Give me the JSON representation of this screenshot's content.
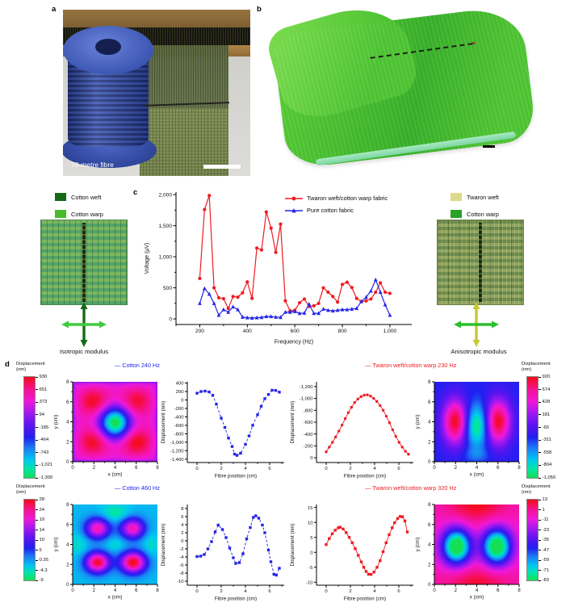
{
  "figure": {
    "panel_labels": {
      "a": "a",
      "b": "b",
      "c": "c",
      "d": "d"
    },
    "panel_a": {
      "overlay_text": "70-metre fibre"
    },
    "left_block": {
      "legend": [
        {
          "label": "Cotton weft",
          "color": "#166b16"
        },
        {
          "label": "Cotton warp",
          "color": "#46bc2d"
        }
      ],
      "arrows": {
        "vertical": "#166b16",
        "horizontal": "#3ecb3e"
      },
      "caption": "Isotropic modulus"
    },
    "right_block": {
      "legend": [
        {
          "label": "Twaron weft",
          "color": "#dcd98a"
        },
        {
          "label": "Cotton warp",
          "color": "#2ba02b"
        }
      ],
      "arrows": {
        "vertical": "#c8c832",
        "horizontal": "#2bbf2b"
      },
      "caption": "Anisotropic modulus"
    }
  },
  "colors": {
    "red_series": "#ee1c23",
    "blue_series": "#2525e8"
  },
  "colormap": [
    [
      0.0,
      "#15df55"
    ],
    [
      0.09,
      "#00e6a8"
    ],
    [
      0.18,
      "#00c8f0"
    ],
    [
      0.3,
      "#1e78f5"
    ],
    [
      0.4,
      "#2020f0"
    ],
    [
      0.52,
      "#5c14f0"
    ],
    [
      0.64,
      "#a018f0"
    ],
    [
      0.76,
      "#f018d8"
    ],
    [
      0.88,
      "#f51290"
    ],
    [
      1.0,
      "#f50a14"
    ]
  ],
  "chart_data": [
    {
      "id": "voltage-spectrum",
      "type": "line",
      "title": "",
      "xlabel": "Frequency (Hz)",
      "ylabel": "Voltage (µV)",
      "xlim": [
        100,
        1092
      ],
      "ylim": [
        -90,
        2040
      ],
      "xticks": {
        "values": [
          200,
          400,
          600,
          800,
          1000
        ],
        "labels": [
          "200",
          "400",
          "600",
          "800",
          "1,000"
        ],
        "minor": 100
      },
      "yticks": {
        "values": [
          0,
          500,
          1000,
          1500,
          2000
        ],
        "labels": [
          "0",
          "500",
          "1,000",
          "1,500",
          "2,000"
        ],
        "minor": 250
      },
      "legend_position": "top-right",
      "x": [
        200,
        220,
        240,
        260,
        280,
        300,
        320,
        340,
        360,
        380,
        400,
        420,
        440,
        460,
        480,
        500,
        520,
        540,
        560,
        580,
        600,
        620,
        640,
        660,
        680,
        700,
        720,
        740,
        760,
        780,
        800,
        820,
        840,
        860,
        880,
        900,
        920,
        940,
        960,
        980,
        1000
      ],
      "series": [
        {
          "name": "Twaron weft/cotton warp fabric",
          "color": "#ee1c23",
          "marker": "circle",
          "values": [
            650,
            1760,
            1985,
            500,
            340,
            325,
            170,
            360,
            350,
            420,
            595,
            330,
            1140,
            1110,
            1720,
            1460,
            1070,
            1525,
            290,
            130,
            140,
            260,
            320,
            200,
            210,
            250,
            500,
            430,
            360,
            270,
            555,
            590,
            505,
            330,
            280,
            290,
            320,
            430,
            580,
            430,
            410
          ]
        },
        {
          "name": "Pure cotton fabric",
          "color": "#2525e8",
          "marker": "triangle",
          "values": [
            250,
            490,
            400,
            250,
            60,
            150,
            110,
            195,
            150,
            30,
            20,
            15,
            20,
            25,
            40,
            40,
            30,
            25,
            110,
            110,
            120,
            90,
            95,
            240,
            90,
            90,
            160,
            140,
            130,
            140,
            150,
            150,
            160,
            170,
            280,
            350,
            450,
            630,
            430,
            230,
            60
          ]
        }
      ]
    },
    {
      "id": "map-cotton-240",
      "type": "heatmap",
      "xlabel": "x (cm)",
      "ylabel": "y (cm)",
      "xlim": [
        0,
        8
      ],
      "ylim": [
        0,
        8
      ],
      "xticks": {
        "values": [
          0,
          2,
          4,
          6,
          8
        ],
        "labels": [
          "0",
          "2",
          "4",
          "6",
          "8"
        ],
        "minor": 1
      },
      "yticks": {
        "values": [
          0,
          2,
          4,
          6,
          8
        ],
        "labels": [
          "0",
          "2",
          "4",
          "6",
          "8"
        ],
        "minor": 1
      },
      "range": [
        -1300,
        930
      ],
      "base": 420,
      "edge": {
        "amount": -400,
        "width": 0.32
      },
      "blobs": [
        {
          "x": 2,
          "y": 6,
          "sx": 1.05,
          "sy": 1.0,
          "a": 500
        },
        {
          "x": 6,
          "y": 6,
          "sx": 1.05,
          "sy": 1.0,
          "a": 470
        },
        {
          "x": 2,
          "y": 2,
          "sx": 1.05,
          "sy": 1.0,
          "a": 500
        },
        {
          "x": 6,
          "y": 2,
          "sx": 1.05,
          "sy": 1.0,
          "a": 540
        },
        {
          "x": 4,
          "y": 3.9,
          "sx": 1.0,
          "sy": 1.1,
          "a": -1800
        }
      ],
      "colorbar": {
        "title_lines": [
          "Displacement",
          "(nm)"
        ],
        "ticks": [
          "930",
          "651",
          "373",
          "94",
          "-185",
          "-464",
          "-743",
          "-1,021",
          "-1,300"
        ]
      }
    },
    {
      "id": "line-cotton-240",
      "type": "mini_line",
      "title": "— Cotton 240 Hz",
      "color": "#2525e8",
      "marker": "square",
      "dash": true,
      "xlabel": "Fibre position (cm)",
      "ylabel": "Displacement (nm)",
      "xlim": [
        -0.8,
        7.2
      ],
      "ylim": [
        -1480,
        430
      ],
      "xticks": {
        "values": [
          0,
          2,
          4,
          6
        ],
        "labels": [
          "0",
          "2",
          "4",
          "6"
        ],
        "minor": 1
      },
      "yticks": {
        "values": [
          400,
          200,
          0,
          -200,
          -400,
          -600,
          -800,
          -1000,
          -1200,
          -1400
        ],
        "labels": [
          "400",
          "200",
          "0",
          "-200",
          "-400",
          "-600",
          "-800",
          "-1,000",
          "-1,200",
          "-1,400"
        ]
      },
      "x": [
        0,
        0.33,
        0.66,
        1.0,
        1.3,
        1.6,
        2.0,
        2.3,
        2.6,
        2.9,
        3.1,
        3.3,
        3.6,
        4.0,
        4.3,
        4.6,
        5.0,
        5.3,
        5.6,
        5.9,
        6.2,
        6.5,
        6.8
      ],
      "values": [
        160,
        200,
        210,
        190,
        110,
        -100,
        -430,
        -650,
        -900,
        -1100,
        -1280,
        -1310,
        -1260,
        -1050,
        -850,
        -600,
        -350,
        -150,
        30,
        130,
        230,
        225,
        185
      ]
    },
    {
      "id": "line-twaron-230",
      "type": "mini_line",
      "title": "— Twaron weft/cotton warp 230 Hz",
      "color": "#ee1c23",
      "marker": "circle",
      "dash": false,
      "xlabel": "Fibre position (cm)",
      "ylabel": "Displacement (nm)",
      "xlim": [
        -0.8,
        7.2
      ],
      "ylim": [
        80,
        -1280
      ],
      "xticks": {
        "values": [
          0,
          2,
          4,
          6
        ],
        "labels": [
          "0",
          "2",
          "4",
          "6"
        ],
        "minor": 1
      },
      "yticks": {
        "values": [
          0,
          -200,
          -400,
          -600,
          -800,
          -1000,
          -1200
        ],
        "labels": [
          "0",
          "-200",
          "-400",
          "-600",
          "-800",
          "-1,000",
          "-1,200"
        ]
      },
      "x": [
        0,
        0.26,
        0.52,
        0.78,
        1.05,
        1.31,
        1.57,
        1.83,
        2.09,
        2.35,
        2.62,
        2.88,
        3.14,
        3.4,
        3.66,
        3.92,
        4.18,
        4.45,
        4.71,
        4.97,
        5.23,
        5.49,
        5.75,
        6.02,
        6.28,
        6.54,
        6.8
      ],
      "values": [
        -100,
        -180,
        -260,
        -350,
        -450,
        -550,
        -660,
        -760,
        -850,
        -930,
        -990,
        -1030,
        -1055,
        -1060,
        -1040,
        -1000,
        -950,
        -880,
        -800,
        -700,
        -590,
        -470,
        -360,
        -260,
        -180,
        -110,
        -60
      ]
    },
    {
      "id": "map-twaron-230",
      "type": "heatmap",
      "xlabel": "x (cm)",
      "ylabel": "y (cm)",
      "xlim": [
        0,
        8
      ],
      "ylim": [
        0,
        8
      ],
      "xticks": {
        "values": [
          0,
          2,
          4,
          6,
          8
        ],
        "labels": [
          "0",
          "2",
          "4",
          "6",
          "8"
        ],
        "minor": 1
      },
      "yticks": {
        "values": [
          0,
          2,
          4,
          6,
          8
        ],
        "labels": [
          "0",
          "2",
          "4",
          "6",
          "8"
        ],
        "minor": 1
      },
      "range": [
        -1050,
        920
      ],
      "base": -240,
      "blobs": [
        {
          "x": 2,
          "y": 4,
          "sx": 0.85,
          "sy": 1.6,
          "a": 1160
        },
        {
          "x": 6,
          "y": 4,
          "sx": 0.85,
          "sy": 1.6,
          "a": 1160
        },
        {
          "x": 4,
          "y": 3.6,
          "sx": 0.8,
          "sy": 1.5,
          "a": -820
        },
        {
          "x": 4,
          "y": 0.7,
          "sx": 0.9,
          "sy": 0.5,
          "a": -180
        }
      ],
      "colorbar": {
        "title_lines": [
          "Displacement",
          "(nm)"
        ],
        "ticks": [
          "920",
          "674",
          "428",
          "181",
          "-65",
          "-311",
          "-558",
          "-804",
          "-1,050"
        ]
      }
    },
    {
      "id": "map-cotton-460",
      "type": "heatmap",
      "xlabel": "x (cm)",
      "ylabel": "y (cm)",
      "xlim": [
        0,
        8
      ],
      "ylim": [
        0,
        8
      ],
      "xticks": {
        "values": [
          0,
          2,
          4,
          6,
          8
        ],
        "labels": [
          "0",
          "2",
          "4",
          "6",
          "8"
        ],
        "minor": 1
      },
      "yticks": {
        "values": [
          0,
          2,
          4,
          6,
          8
        ],
        "labels": [
          "0",
          "2",
          "4",
          "6",
          "8"
        ],
        "minor": 1
      },
      "range": [
        -9,
        28
      ],
      "base": -1.5,
      "blobs": [
        {
          "x": 2.35,
          "y": 5.6,
          "sx": 0.8,
          "sy": 0.72,
          "a": 23
        },
        {
          "x": 5.65,
          "y": 5.6,
          "sx": 0.8,
          "sy": 0.72,
          "a": 23
        },
        {
          "x": 2.35,
          "y": 2.2,
          "sx": 0.8,
          "sy": 0.72,
          "a": 29
        },
        {
          "x": 5.7,
          "y": 2.2,
          "sx": 0.85,
          "sy": 0.75,
          "a": 30
        },
        {
          "x": 4,
          "y": 7.1,
          "sx": 0.9,
          "sy": 0.6,
          "a": -5
        },
        {
          "x": 4,
          "y": 4,
          "sx": 0.7,
          "sy": 0.5,
          "a": -3
        },
        {
          "x": 0.6,
          "y": 4,
          "sx": 0.6,
          "sy": 0.8,
          "a": -3
        },
        {
          "x": 7.4,
          "y": 4,
          "sx": 0.6,
          "sy": 0.8,
          "a": -3
        }
      ],
      "colorbar": {
        "title_lines": [
          "Displacement",
          "(nm)"
        ],
        "ticks": [
          "28",
          "24",
          "19",
          "14",
          "10",
          "5",
          "0.35",
          "-4.3",
          "-9"
        ]
      }
    },
    {
      "id": "line-cotton-460",
      "type": "mini_line",
      "title": "— Cotton 460 Hz",
      "color": "#2525e8",
      "marker": "square",
      "dash": true,
      "xlabel": "Fibre position (cm)",
      "ylabel": "Displacement (nm)",
      "xlim": [
        -0.8,
        7.2
      ],
      "ylim": [
        -11,
        9
      ],
      "xticks": {
        "values": [
          0,
          2,
          4,
          6
        ],
        "labels": [
          "0",
          "2",
          "4",
          "6"
        ],
        "minor": 1
      },
      "yticks": {
        "values": [
          8,
          6,
          4,
          2,
          0,
          -2,
          -4,
          -6,
          -8,
          -10
        ],
        "labels": [
          "8",
          "6",
          "4",
          "2",
          "0",
          "-2",
          "-4",
          "-6",
          "-8",
          "-10"
        ]
      },
      "x": [
        0,
        0.3,
        0.6,
        0.9,
        1.2,
        1.5,
        1.75,
        2.1,
        2.4,
        2.7,
        3.0,
        3.2,
        3.5,
        3.8,
        4.1,
        4.4,
        4.65,
        4.85,
        5.1,
        5.4,
        5.6,
        5.9,
        6.1,
        6.35,
        6.55,
        6.8
      ],
      "values": [
        -3.9,
        -3.8,
        -3.4,
        -2.0,
        -0.2,
        2.2,
        3.9,
        2.8,
        0.8,
        -1.8,
        -4.2,
        -5.6,
        -5.4,
        -3.2,
        0.5,
        3.3,
        5.8,
        6.2,
        5.6,
        3.9,
        2.0,
        -2.3,
        -5.2,
        -8.3,
        -8.5,
        -6.8
      ]
    },
    {
      "id": "line-twaron-320",
      "type": "mini_line",
      "title": "— Twaron weft/cotton warp 320 Hz",
      "color": "#ee1c23",
      "marker": "square",
      "dash": false,
      "xlabel": "Fibre position (cm)",
      "ylabel": "Displacement (nm)",
      "xlim": [
        -0.8,
        7.2
      ],
      "ylim": [
        -11,
        16
      ],
      "xticks": {
        "values": [
          0,
          2,
          4,
          6
        ],
        "labels": [
          "0",
          "2",
          "4",
          "6"
        ],
        "minor": 1
      },
      "yticks": {
        "values": [
          15,
          10,
          5,
          0,
          -5,
          -10
        ],
        "labels": [
          "15",
          "10",
          "5",
          "0",
          "-5",
          "-10"
        ]
      },
      "x": [
        0,
        0.25,
        0.5,
        0.75,
        1.0,
        1.15,
        1.4,
        1.65,
        1.9,
        2.15,
        2.4,
        2.65,
        2.9,
        3.1,
        3.3,
        3.5,
        3.7,
        3.95,
        4.2,
        4.45,
        4.7,
        4.95,
        5.2,
        5.45,
        5.65,
        5.9,
        6.1,
        6.3,
        6.5,
        6.7
      ],
      "values": [
        2.6,
        4.6,
        6.2,
        7.4,
        8.2,
        8.4,
        7.8,
        6.6,
        5.0,
        3.2,
        1.2,
        -1.0,
        -3.2,
        -5.0,
        -6.4,
        -7.3,
        -7.4,
        -6.6,
        -5.0,
        -2.8,
        0.2,
        3.2,
        5.9,
        8.2,
        9.9,
        11.3,
        12.0,
        11.9,
        10.5,
        6.8
      ]
    },
    {
      "id": "map-twaron-320",
      "type": "heatmap",
      "xlabel": "x (cm)",
      "ylabel": "y (cm)",
      "xlim": [
        0,
        8
      ],
      "ylim": [
        0,
        8
      ],
      "xticks": {
        "values": [
          0,
          2,
          4,
          6,
          8
        ],
        "labels": [
          "0",
          "2",
          "4",
          "6",
          "8"
        ],
        "minor": 1
      },
      "yticks": {
        "values": [
          0,
          2,
          4,
          6,
          8
        ],
        "labels": [
          "0",
          "2",
          "4",
          "6",
          "8"
        ],
        "minor": 1
      },
      "range": [
        -83,
        13
      ],
      "base": -7,
      "blobs": [
        {
          "x": 4,
          "y": 8.0,
          "sx": 2.2,
          "sy": 1.4,
          "a": 19
        },
        {
          "x": 4,
          "y": 0.2,
          "sx": 2.4,
          "sy": 1.2,
          "a": 17
        },
        {
          "x": 2.1,
          "y": 3.8,
          "sx": 0.95,
          "sy": 1.25,
          "a": -88
        },
        {
          "x": 5.9,
          "y": 3.8,
          "sx": 0.95,
          "sy": 1.25,
          "a": -88
        }
      ],
      "colorbar": {
        "title_lines": [
          "Displacement",
          "(nm)"
        ],
        "ticks": [
          "13",
          "1",
          "-11",
          "-23",
          "-35",
          "-47",
          "-59",
          "-71",
          "-83"
        ]
      }
    }
  ]
}
